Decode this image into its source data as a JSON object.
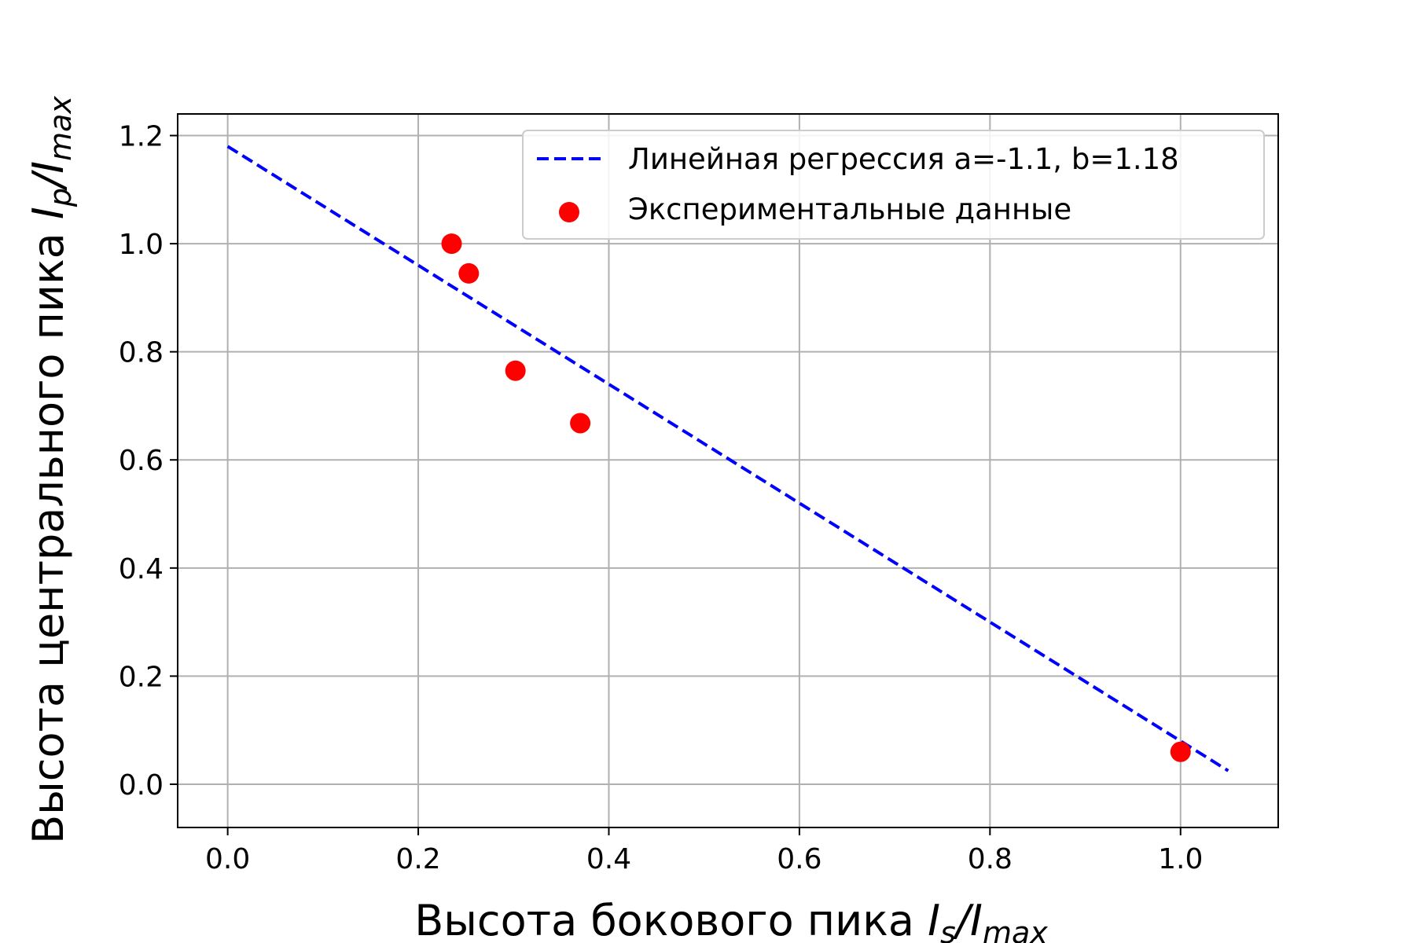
{
  "chart_data": {
    "type": "scatter",
    "title": "",
    "xlabel": {
      "main": "Высота бокового пика ",
      "var": "I",
      "sub": "s",
      "sep": "/I",
      "sub2": "max"
    },
    "ylabel": {
      "main": "Высота центрального пика ",
      "var": "I",
      "sub": "p",
      "sep": "/I",
      "sub2": "max"
    },
    "xlim": [
      -0.0525,
      1.1025
    ],
    "ylim": [
      -0.08,
      1.24
    ],
    "xticks": [
      0.0,
      0.2,
      0.4,
      0.6,
      0.8,
      1.0
    ],
    "xtick_labels": [
      "0.0",
      "0.2",
      "0.4",
      "0.6",
      "0.8",
      "1.0"
    ],
    "yticks": [
      0.0,
      0.2,
      0.4,
      0.6,
      0.8,
      1.0,
      1.2
    ],
    "ytick_labels": [
      "0.0",
      "0.2",
      "0.4",
      "0.6",
      "0.8",
      "1.0",
      "1.2"
    ],
    "grid": true,
    "legend_position": "top-right",
    "series": [
      {
        "name": "Линейная регрессия a=-1.1, b=1.18",
        "kind": "line",
        "style": "dashed",
        "color": "#0000ff",
        "x": [
          0.0,
          1.05
        ],
        "y": [
          1.18,
          0.025
        ]
      },
      {
        "name": "Экспериментальные данные",
        "kind": "scatter",
        "color": "#ff0000",
        "x": [
          0.235,
          0.253,
          0.302,
          0.37,
          1.0
        ],
        "y": [
          1.0,
          0.945,
          0.765,
          0.668,
          0.06
        ]
      }
    ]
  }
}
